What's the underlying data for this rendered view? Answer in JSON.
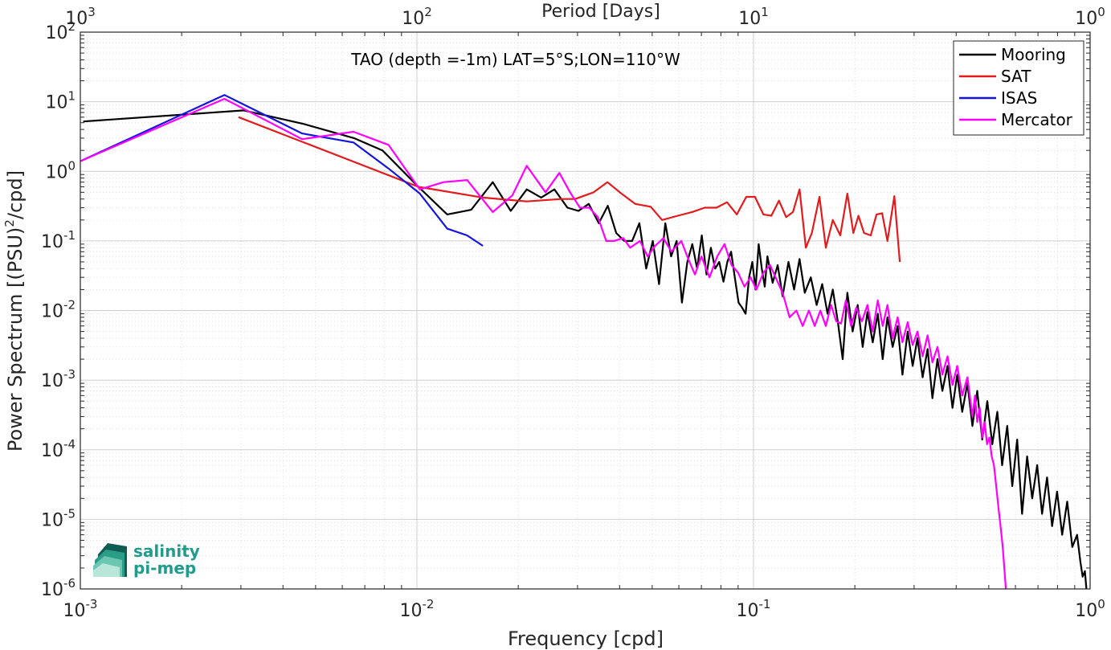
{
  "chart_data": {
    "type": "line",
    "title": "TAO (depth =-1m) LAT=5°S;LON=110°W",
    "xlabel": "Frequency [cpd]",
    "ylabel": "Power Spectrum [(PSU)2/cpd]",
    "ylabel_parts": [
      "Power Spectrum [(PSU)",
      "2",
      "/cpd]"
    ],
    "top_xlabel": "Period [Days]",
    "x_scale": "log",
    "y_scale": "log",
    "xlim": [
      0.001,
      1
    ],
    "ylim": [
      1e-06,
      100
    ],
    "grid": true,
    "legend_position": "top-right",
    "x_ticks": [
      {
        "v": 0.001,
        "base": "10",
        "exp": "-3"
      },
      {
        "v": 0.01,
        "base": "10",
        "exp": "-2"
      },
      {
        "v": 0.1,
        "base": "10",
        "exp": "-1"
      },
      {
        "v": 1,
        "base": "10",
        "exp": "0"
      }
    ],
    "top_ticks": [
      {
        "v": 0.001,
        "base": "10",
        "exp": "3"
      },
      {
        "v": 0.01,
        "base": "10",
        "exp": "2"
      },
      {
        "v": 0.1,
        "base": "10",
        "exp": "1"
      },
      {
        "v": 1,
        "base": "10",
        "exp": "0"
      }
    ],
    "y_ticks": [
      {
        "v": 100,
        "base": "10",
        "exp": "2"
      },
      {
        "v": 10,
        "base": "10",
        "exp": "1"
      },
      {
        "v": 1,
        "base": "10",
        "exp": "0"
      },
      {
        "v": 0.1,
        "base": "10",
        "exp": "-1"
      },
      {
        "v": 0.01,
        "base": "10",
        "exp": "-2"
      },
      {
        "v": 0.001,
        "base": "10",
        "exp": "-3"
      },
      {
        "v": 0.0001,
        "base": "10",
        "exp": "-4"
      },
      {
        "v": 1e-05,
        "base": "10",
        "exp": "-5"
      },
      {
        "v": 1e-06,
        "base": "10",
        "exp": "-6"
      }
    ],
    "series": [
      {
        "name": "Mooring",
        "color": "#000000",
        "points": [
          [
            0.00102,
            5.2
          ],
          [
            0.00306,
            7.5
          ],
          [
            0.0046,
            4.8
          ],
          [
            0.0065,
            3.0
          ],
          [
            0.0079,
            2.0
          ],
          [
            0.0101,
            0.6
          ],
          [
            0.0123,
            0.24
          ],
          [
            0.0145,
            0.28
          ],
          [
            0.0168,
            0.7
          ],
          [
            0.019,
            0.27
          ],
          [
            0.0212,
            0.55
          ],
          [
            0.0234,
            0.42
          ],
          [
            0.0256,
            0.55
          ],
          [
            0.028,
            0.3
          ],
          [
            0.0302,
            0.27
          ],
          [
            0.0324,
            0.34
          ],
          [
            0.0347,
            0.18
          ],
          [
            0.0369,
            0.32
          ],
          [
            0.0391,
            0.13
          ],
          [
            0.0413,
            0.1
          ],
          [
            0.0436,
            0.1
          ],
          [
            0.0458,
            0.18
          ],
          [
            0.048,
            0.04
          ],
          [
            0.0502,
            0.1
          ],
          [
            0.0524,
            0.024
          ],
          [
            0.0547,
            0.18
          ],
          [
            0.0569,
            0.06
          ],
          [
            0.0591,
            0.1
          ],
          [
            0.0613,
            0.013
          ],
          [
            0.0636,
            0.05
          ],
          [
            0.0658,
            0.09
          ],
          [
            0.068,
            0.04
          ],
          [
            0.0702,
            0.12
          ],
          [
            0.0725,
            0.033
          ],
          [
            0.0747,
            0.08
          ],
          [
            0.0769,
            0.04
          ],
          [
            0.0791,
            0.05
          ],
          [
            0.0814,
            0.026
          ],
          [
            0.0836,
            0.05
          ],
          [
            0.0858,
            0.07
          ],
          [
            0.088,
            0.03
          ],
          [
            0.0903,
            0.013
          ],
          [
            0.0925,
            0.011
          ],
          [
            0.0947,
            0.009
          ],
          [
            0.097,
            0.03
          ],
          [
            0.0992,
            0.05
          ],
          [
            0.1014,
            0.02
          ],
          [
            0.1036,
            0.09
          ],
          [
            0.1058,
            0.04
          ],
          [
            0.108,
            0.022
          ],
          [
            0.11,
            0.06
          ],
          [
            0.114,
            0.025
          ],
          [
            0.118,
            0.045
          ],
          [
            0.122,
            0.016
          ],
          [
            0.127,
            0.05
          ],
          [
            0.132,
            0.02
          ],
          [
            0.137,
            0.055
          ],
          [
            0.142,
            0.018
          ],
          [
            0.148,
            0.03
          ],
          [
            0.154,
            0.012
          ],
          [
            0.16,
            0.024
          ],
          [
            0.166,
            0.009
          ],
          [
            0.172,
            0.02
          ],
          [
            0.178,
            0.007
          ],
          [
            0.184,
            0.002
          ],
          [
            0.19,
            0.018
          ],
          [
            0.197,
            0.005
          ],
          [
            0.204,
            0.012
          ],
          [
            0.211,
            0.003
          ],
          [
            0.218,
            0.0095
          ],
          [
            0.226,
            0.0035
          ],
          [
            0.234,
            0.009
          ],
          [
            0.242,
            0.002
          ],
          [
            0.25,
            0.008
          ],
          [
            0.259,
            0.003
          ],
          [
            0.268,
            0.006
          ],
          [
            0.277,
            0.0012
          ],
          [
            0.287,
            0.005
          ],
          [
            0.297,
            0.0016
          ],
          [
            0.307,
            0.004
          ],
          [
            0.318,
            0.0011
          ],
          [
            0.329,
            0.0028
          ],
          [
            0.34,
            0.00055
          ],
          [
            0.352,
            0.002
          ],
          [
            0.364,
            0.0007
          ],
          [
            0.377,
            0.0016
          ],
          [
            0.39,
            0.0004
          ],
          [
            0.403,
            0.0012
          ],
          [
            0.417,
            0.00035
          ],
          [
            0.432,
            0.0009
          ],
          [
            0.447,
            0.00022
          ],
          [
            0.462,
            0.0007
          ],
          [
            0.478,
            0.00014
          ],
          [
            0.495,
            0.0005
          ],
          [
            0.512,
            0.00012
          ],
          [
            0.53,
            0.00035
          ],
          [
            0.548,
            6e-05
          ],
          [
            0.567,
            0.00022
          ],
          [
            0.587,
            3e-05
          ],
          [
            0.607,
            0.00014
          ],
          [
            0.628,
            1.2e-05
          ],
          [
            0.65,
            8e-05
          ],
          [
            0.673,
            2e-05
          ],
          [
            0.696,
            6e-05
          ],
          [
            0.72,
            1.2e-05
          ],
          [
            0.745,
            4e-05
          ],
          [
            0.771,
            8e-06
          ],
          [
            0.798,
            2.5e-05
          ],
          [
            0.826,
            6e-06
          ],
          [
            0.855,
            1.8e-05
          ],
          [
            0.885,
            4e-06
          ],
          [
            0.915,
            6e-06
          ],
          [
            0.935,
            2.5e-06
          ],
          [
            0.95,
            1.5e-06
          ],
          [
            0.965,
            1.8e-06
          ],
          [
            0.975,
            1e-06
          ]
        ]
      },
      {
        "name": "SAT",
        "color": "#e41a1c",
        "points": [
          [
            0.00295,
            6.0
          ],
          [
            0.0101,
            0.6
          ],
          [
            0.0157,
            0.42
          ],
          [
            0.0212,
            0.37
          ],
          [
            0.0268,
            0.4
          ],
          [
            0.0295,
            0.4
          ],
          [
            0.0335,
            0.5
          ],
          [
            0.0368,
            0.7
          ],
          [
            0.0405,
            0.48
          ],
          [
            0.0445,
            0.34
          ],
          [
            0.0495,
            0.31
          ],
          [
            0.0535,
            0.2
          ],
          [
            0.0596,
            0.23
          ],
          [
            0.0657,
            0.26
          ],
          [
            0.0716,
            0.3
          ],
          [
            0.0776,
            0.3
          ],
          [
            0.0834,
            0.36
          ],
          [
            0.0892,
            0.24
          ],
          [
            0.0952,
            0.43
          ],
          [
            0.101,
            0.43
          ],
          [
            0.107,
            0.24
          ],
          [
            0.113,
            0.23
          ],
          [
            0.119,
            0.38
          ],
          [
            0.125,
            0.22
          ],
          [
            0.131,
            0.26
          ],
          [
            0.137,
            0.55
          ],
          [
            0.143,
            0.08
          ],
          [
            0.149,
            0.13
          ],
          [
            0.157,
            0.43
          ],
          [
            0.164,
            0.08
          ],
          [
            0.172,
            0.2
          ],
          [
            0.181,
            0.12
          ],
          [
            0.19,
            0.48
          ],
          [
            0.198,
            0.13
          ],
          [
            0.205,
            0.23
          ],
          [
            0.213,
            0.13
          ],
          [
            0.223,
            0.12
          ],
          [
            0.232,
            0.24
          ],
          [
            0.241,
            0.25
          ],
          [
            0.25,
            0.1
          ],
          [
            0.262,
            0.44
          ],
          [
            0.272,
            0.05
          ]
        ]
      },
      {
        "name": "ISAS",
        "color": "#1414e0",
        "points": [
          [
            0.001,
            1.4
          ],
          [
            0.00268,
            12.5
          ],
          [
            0.00456,
            3.5
          ],
          [
            0.00648,
            2.6
          ],
          [
            0.00823,
            1.1
          ],
          [
            0.0102,
            0.48
          ],
          [
            0.0123,
            0.15
          ],
          [
            0.0141,
            0.12
          ],
          [
            0.0157,
            0.085
          ]
        ]
      },
      {
        "name": "Mercator",
        "color": "#ff00ff",
        "points": [
          [
            0.001,
            1.4
          ],
          [
            0.00268,
            11.0
          ],
          [
            0.00456,
            2.9
          ],
          [
            0.00648,
            3.7
          ],
          [
            0.00823,
            2.4
          ],
          [
            0.0102,
            0.55
          ],
          [
            0.012,
            0.7
          ],
          [
            0.0141,
            0.75
          ],
          [
            0.0168,
            0.26
          ],
          [
            0.0192,
            0.45
          ],
          [
            0.0212,
            1.2
          ],
          [
            0.0241,
            0.5
          ],
          [
            0.0265,
            0.95
          ],
          [
            0.0285,
            0.5
          ],
          [
            0.0305,
            0.3
          ],
          [
            0.0325,
            0.3
          ],
          [
            0.0345,
            0.22
          ],
          [
            0.0365,
            0.1
          ],
          [
            0.0385,
            0.1
          ],
          [
            0.041,
            0.11
          ],
          [
            0.043,
            0.08
          ],
          [
            0.046,
            0.1
          ],
          [
            0.0485,
            0.06
          ],
          [
            0.051,
            0.085
          ],
          [
            0.054,
            0.11
          ],
          [
            0.057,
            0.07
          ],
          [
            0.061,
            0.1
          ],
          [
            0.064,
            0.055
          ],
          [
            0.067,
            0.033
          ],
          [
            0.07,
            0.06
          ],
          [
            0.074,
            0.03
          ],
          [
            0.078,
            0.06
          ],
          [
            0.082,
            0.09
          ],
          [
            0.086,
            0.045
          ],
          [
            0.09,
            0.035
          ],
          [
            0.094,
            0.022
          ],
          [
            0.098,
            0.03
          ],
          [
            0.102,
            0.02
          ],
          [
            0.107,
            0.035
          ],
          [
            0.112,
            0.045
          ],
          [
            0.117,
            0.028
          ],
          [
            0.122,
            0.018
          ],
          [
            0.128,
            0.008
          ],
          [
            0.134,
            0.01
          ],
          [
            0.14,
            0.006
          ],
          [
            0.146,
            0.01
          ],
          [
            0.152,
            0.006
          ],
          [
            0.158,
            0.01
          ],
          [
            0.164,
            0.006
          ],
          [
            0.17,
            0.012
          ],
          [
            0.176,
            0.007
          ],
          [
            0.182,
            0.0065
          ],
          [
            0.188,
            0.014
          ],
          [
            0.195,
            0.006
          ],
          [
            0.202,
            0.011
          ],
          [
            0.21,
            0.007
          ],
          [
            0.218,
            0.012
          ],
          [
            0.226,
            0.005
          ],
          [
            0.234,
            0.014
          ],
          [
            0.242,
            0.006
          ],
          [
            0.25,
            0.012
          ],
          [
            0.259,
            0.004
          ],
          [
            0.268,
            0.008
          ],
          [
            0.277,
            0.0035
          ],
          [
            0.287,
            0.0068
          ],
          [
            0.297,
            0.0032
          ],
          [
            0.307,
            0.005
          ],
          [
            0.318,
            0.0022
          ],
          [
            0.329,
            0.0044
          ],
          [
            0.34,
            0.0018
          ],
          [
            0.352,
            0.003
          ],
          [
            0.364,
            0.0012
          ],
          [
            0.377,
            0.0022
          ],
          [
            0.39,
            0.00085
          ],
          [
            0.403,
            0.0016
          ],
          [
            0.417,
            0.0006
          ],
          [
            0.432,
            0.0011
          ],
          [
            0.447,
            0.0003
          ],
          [
            0.455,
            0.0006
          ],
          [
            0.462,
            0.00025
          ],
          [
            0.47,
            0.0004
          ],
          [
            0.478,
            0.00015
          ],
          [
            0.486,
            0.00025
          ],
          [
            0.494,
            0.00012
          ],
          [
            0.502,
            0.00015
          ],
          [
            0.51,
            8e-05
          ],
          [
            0.518,
            6e-05
          ],
          [
            0.526,
            3e-05
          ],
          [
            0.534,
            1.5e-05
          ],
          [
            0.542,
            8e-06
          ],
          [
            0.55,
            4e-06
          ],
          [
            0.556,
            2e-06
          ],
          [
            0.562,
            1e-06
          ]
        ]
      }
    ]
  },
  "logo": {
    "line1": "salinity",
    "line2": "pi-mep",
    "color": "#1f9c8b"
  }
}
